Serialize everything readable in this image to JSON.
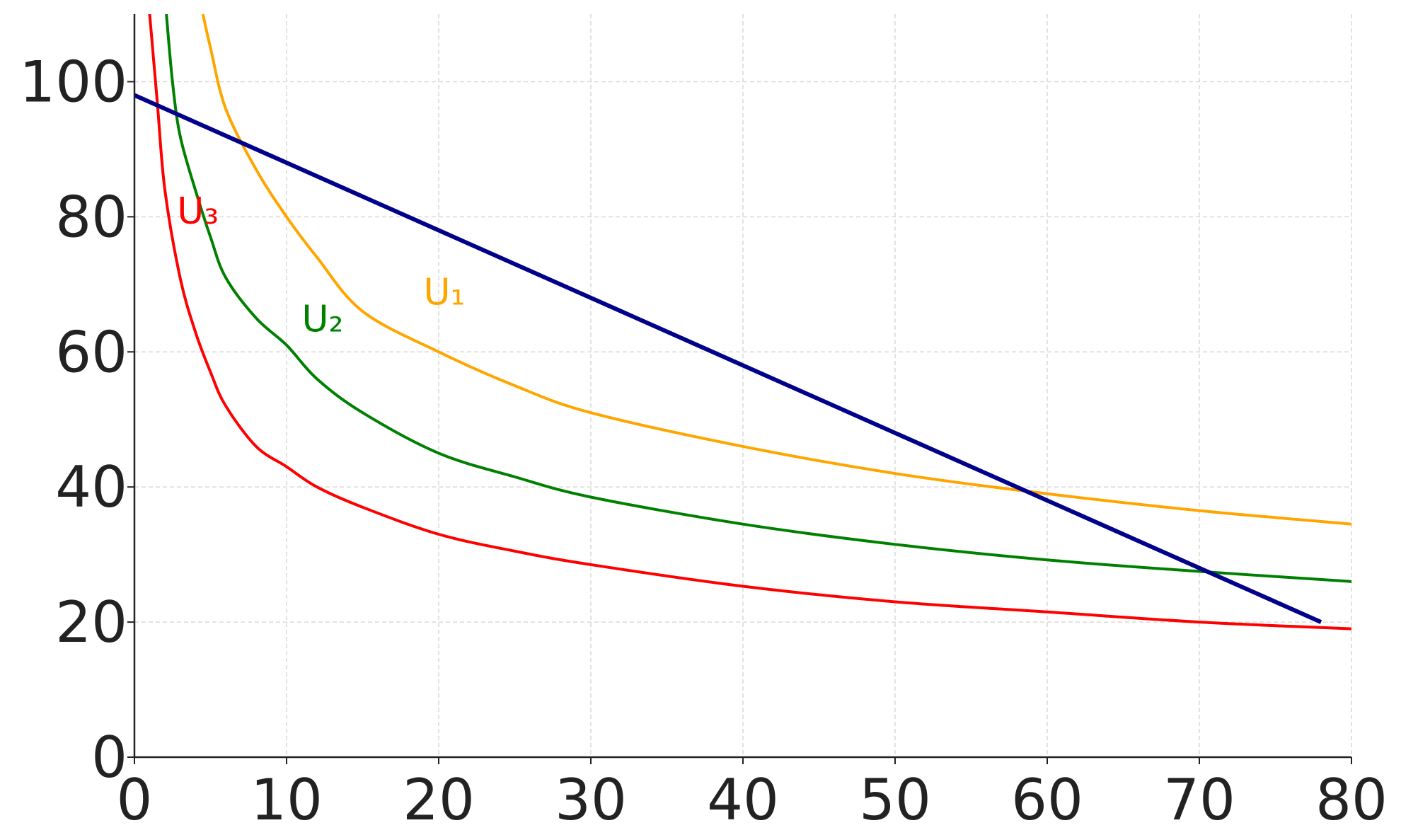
{
  "chart_data": {
    "type": "line",
    "title": "",
    "xlabel": "",
    "ylabel": "",
    "xlim": [
      0,
      80
    ],
    "ylim": [
      0,
      110
    ],
    "x_ticks": [
      "0",
      "10",
      "20",
      "30",
      "40",
      "50",
      "60",
      "70",
      "80"
    ],
    "y_ticks": [
      "0",
      "20",
      "40",
      "60",
      "80",
      "100"
    ],
    "grid": true,
    "series": [
      {
        "name": "U₁",
        "color": "#ffa500",
        "x": [
          4.5,
          5,
          6,
          8,
          10,
          12,
          15,
          20,
          25,
          30,
          40,
          50,
          60,
          70,
          80
        ],
        "y": [
          110,
          105,
          96,
          87,
          80,
          74,
          66,
          60,
          55,
          51,
          46,
          42,
          39,
          36.5,
          34.5
        ]
      },
      {
        "name": "U₂",
        "color": "#008000",
        "x": [
          2.1,
          2.5,
          3,
          4,
          5,
          6,
          8,
          10,
          12,
          15,
          20,
          25,
          30,
          40,
          50,
          60,
          70,
          80
        ],
        "y": [
          110,
          100,
          92,
          84,
          77,
          71,
          65,
          61,
          56,
          51,
          45,
          41.5,
          38.5,
          34.5,
          31.5,
          29.2,
          27.5,
          26
        ]
      },
      {
        "name": "U₃",
        "color": "#ff0000",
        "x": [
          1,
          1.5,
          2,
          3,
          4,
          5,
          6,
          8,
          10,
          12,
          15,
          20,
          25,
          30,
          40,
          50,
          60,
          70,
          80
        ],
        "y": [
          110,
          97,
          84,
          71,
          63,
          57,
          52,
          46,
          43,
          40,
          37,
          33,
          30.5,
          28.5,
          25.3,
          23,
          21.5,
          20,
          19
        ]
      },
      {
        "name": "",
        "color": "#00008b",
        "x": [
          0,
          78
        ],
        "y": [
          98,
          20
        ]
      }
    ],
    "annotations": [
      {
        "text": "U₁",
        "x": 19,
        "y": 67,
        "color": "#ffa500"
      },
      {
        "text": "U₂",
        "x": 11,
        "y": 63,
        "color": "#008000"
      },
      {
        "text": "U₃",
        "x": 2.8,
        "y": 79,
        "color": "#ff0000"
      }
    ]
  }
}
